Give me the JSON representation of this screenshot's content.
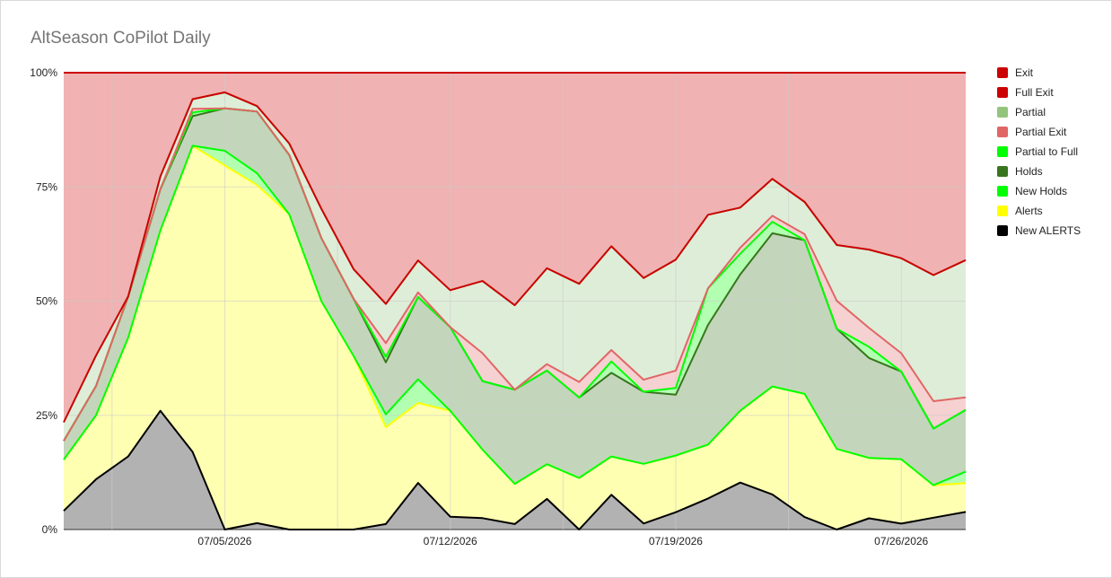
{
  "chart_data": {
    "type": "area",
    "stacked": "percent",
    "title": "AltSeason CoPilot Daily",
    "xlabel": "",
    "ylabel": "",
    "ylim": [
      0,
      100
    ],
    "y_ticks": [
      "0%",
      "25%",
      "50%",
      "75%",
      "100%"
    ],
    "x_ticks": [
      {
        "label": "07/05/2026",
        "date": "2026-07-05"
      },
      {
        "label": "07/12/2026",
        "date": "2026-07-12"
      },
      {
        "label": "07/19/2026",
        "date": "2026-07-19"
      },
      {
        "label": "07/26/2026",
        "date": "2026-07-26"
      }
    ],
    "grid": true,
    "legend_position": "right",
    "x": [
      "2026-06-30",
      "2026-07-01",
      "2026-07-02",
      "2026-07-03",
      "2026-07-04",
      "2026-07-05",
      "2026-07-06",
      "2026-07-07",
      "2026-07-08",
      "2026-07-09",
      "2026-07-10",
      "2026-07-11",
      "2026-07-12",
      "2026-07-13",
      "2026-07-14",
      "2026-07-15",
      "2026-07-16",
      "2026-07-17",
      "2026-07-18",
      "2026-07-19",
      "2026-07-20",
      "2026-07-21",
      "2026-07-22",
      "2026-07-23",
      "2026-07-24",
      "2026-07-25",
      "2026-07-26",
      "2026-07-27",
      "2026-07-28"
    ],
    "series": [
      {
        "name": "New ALERTS",
        "color": "#000000",
        "values": [
          4,
          11,
          16,
          26,
          17,
          0,
          1.4,
          0,
          0,
          0,
          1.2,
          10.2,
          2.8,
          2.5,
          1.2,
          6.7,
          0,
          7.6,
          1.3,
          3.8,
          6.8,
          10.2,
          7.6,
          2.7,
          0,
          2.5,
          1.3,
          2.6,
          3.8
        ]
      },
      {
        "name": "Alerts",
        "color": "#ffff00",
        "values": [
          11,
          14,
          26,
          39.5,
          67,
          79.7,
          74,
          69,
          50,
          38,
          21.2,
          17.5,
          23.2,
          15,
          8.8,
          7.6,
          11.3,
          8.4,
          12.9,
          12.4,
          11.8,
          15.6,
          23.4,
          26.7,
          17.3,
          13.5,
          14.1,
          7.1,
          6.2
        ]
      },
      {
        "name": "New Holds",
        "color": "#00ff00",
        "values": [
          0,
          0,
          0,
          0,
          0,
          3.2,
          2.6,
          0,
          0,
          0,
          2.8,
          5.2,
          0,
          0,
          0,
          0,
          0,
          0,
          0,
          0,
          0,
          0,
          0,
          0,
          0,
          0,
          0,
          0,
          2.5
        ]
      },
      {
        "name": "Holds",
        "color": "#38761d",
        "values": [
          4,
          6.4,
          9,
          9,
          6.5,
          9.3,
          13.5,
          13,
          13.8,
          12.5,
          11.4,
          18,
          18.3,
          15,
          20.6,
          20.5,
          17.6,
          18.3,
          15.6,
          13.3,
          26.2,
          29.6,
          33.2,
          33.3,
          25.8,
          22.3,
          19.2,
          12.4,
          13.3
        ]
      },
      {
        "name": "Partial to Full",
        "color": "#00ff00",
        "values": [
          0,
          0,
          0,
          0,
          0.8,
          0,
          0,
          0,
          0,
          0,
          1.2,
          0,
          0,
          0,
          0,
          0,
          0,
          2.5,
          0,
          1.5,
          8,
          4.5,
          2.5,
          0,
          0,
          2.5,
          0,
          0,
          0
        ]
      },
      {
        "name": "Partial Exit",
        "color": "#e06666",
        "values": [
          0,
          0,
          0,
          0,
          0.8,
          0,
          0,
          0,
          0,
          0,
          3,
          1,
          0,
          6.1,
          0,
          1.4,
          3.4,
          2.5,
          2.6,
          3.8,
          0,
          1.3,
          1.3,
          1.3,
          6,
          4.2,
          4,
          6,
          2.7
        ]
      },
      {
        "name": "Partial",
        "color": "#93c47d",
        "values": [
          4,
          6.7,
          0,
          2.8,
          2.1,
          3.5,
          1.2,
          2.5,
          6.4,
          6.5,
          8.6,
          7,
          8.1,
          15.8,
          18.5,
          21,
          21.5,
          22.7,
          22,
          24.3,
          16.1,
          8.7,
          8,
          7,
          12,
          17.5,
          20.8,
          27.6,
          29.6
        ]
      },
      {
        "name": "Full Exit",
        "color": "#cc0000",
        "values": [
          0,
          0,
          0,
          0,
          0,
          0,
          0,
          0,
          0,
          0,
          0,
          0,
          0,
          0,
          0,
          0,
          0,
          0,
          0,
          0,
          0,
          0,
          0,
          0,
          0,
          0,
          0,
          0,
          0
        ]
      },
      {
        "name": "Exit",
        "color": "#cc0000",
        "values": [
          75,
          62,
          49,
          22.7,
          5.8,
          4.3,
          7.3,
          15.5,
          29.8,
          43,
          50.6,
          41.1,
          47.6,
          45.6,
          50.9,
          42.8,
          46.2,
          38,
          44.4,
          40.9,
          31.1,
          29.3,
          23,
          28,
          37,
          39.5,
          40.6,
          44.3,
          40.4
        ]
      }
    ]
  }
}
